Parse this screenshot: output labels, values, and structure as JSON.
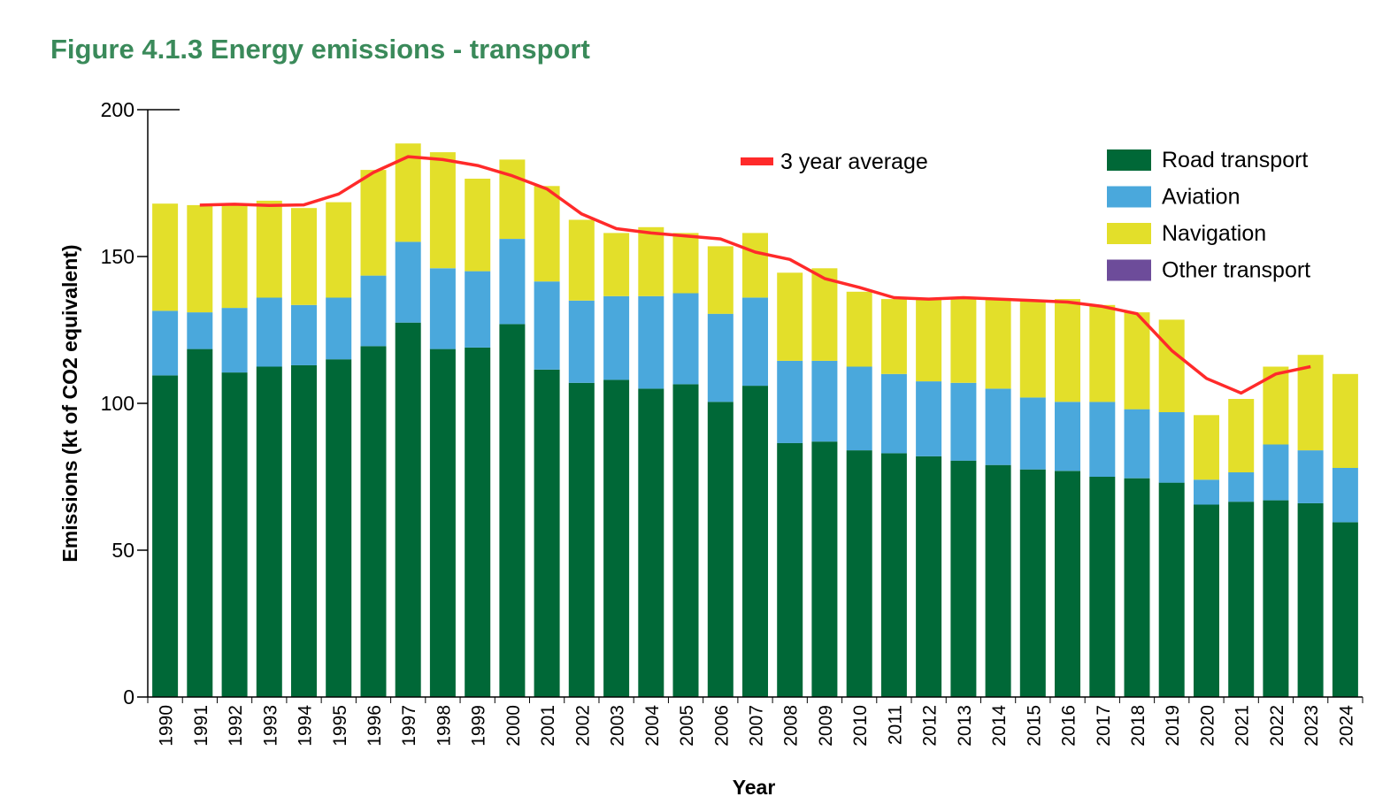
{
  "figure": {
    "title": "Figure 4.1.3 Energy emissions - transport"
  },
  "chart_data": {
    "type": "bar",
    "stacked": true,
    "title": "Figure 4.1.3 Energy emissions - transport",
    "xlabel": "Year",
    "ylabel": "Emissions (kt of CO2 equivalent)",
    "ylim": [
      0,
      200
    ],
    "yticks": [
      0,
      50,
      100,
      150,
      200
    ],
    "grid": false,
    "legend_position": "top-right",
    "categories": [
      "1990",
      "1991",
      "1992",
      "1993",
      "1994",
      "1995",
      "1996",
      "1997",
      "1998",
      "1999",
      "2000",
      "2001",
      "2002",
      "2003",
      "2004",
      "2005",
      "2006",
      "2007",
      "2008",
      "2009",
      "2010",
      "2011",
      "2012",
      "2013",
      "2014",
      "2015",
      "2016",
      "2017",
      "2018",
      "2019",
      "2020",
      "2021",
      "2022",
      "2023",
      "2024"
    ],
    "series": [
      {
        "name": "Road transport",
        "color": "#006837",
        "values": [
          109.5,
          118.5,
          110.5,
          112.5,
          113,
          115,
          119.5,
          127.5,
          118.5,
          119,
          127,
          111.5,
          107,
          108,
          105,
          106.5,
          100.5,
          106,
          86.5,
          87,
          84,
          83,
          82,
          80.5,
          79,
          77.5,
          77,
          75,
          74.5,
          73,
          65.5,
          66.5,
          67,
          66,
          59.5
        ]
      },
      {
        "name": "Aviation",
        "color": "#4aa8dc",
        "values": [
          22,
          12.5,
          22,
          23.5,
          20.5,
          21,
          24,
          27.5,
          27.5,
          26,
          29,
          30,
          28,
          28.5,
          31.5,
          31,
          30,
          30,
          28,
          27.5,
          28.5,
          27,
          25.5,
          26.5,
          26,
          24.5,
          23.5,
          25.5,
          23.5,
          24,
          8.5,
          10,
          19,
          18,
          18.5
        ]
      },
      {
        "name": "Navigation",
        "color": "#e3df2a",
        "values": [
          36.5,
          36.5,
          35.5,
          33,
          33,
          32.5,
          36,
          33.5,
          39.5,
          31.5,
          27,
          32.5,
          27.5,
          21.5,
          23.5,
          20.5,
          23,
          22,
          30,
          31.5,
          25.5,
          25.5,
          28.5,
          29,
          30.5,
          33,
          35,
          33,
          33,
          31.5,
          22,
          25,
          26.5,
          32.5,
          32
        ]
      },
      {
        "name": "Other transport",
        "color": "#6d4c9a",
        "values": [
          0,
          0,
          0,
          0,
          0,
          0,
          0,
          0,
          0,
          0,
          0,
          0,
          0,
          0,
          0,
          0,
          0,
          0,
          0,
          0,
          0,
          0,
          0,
          0,
          0,
          0,
          0,
          0,
          0,
          0,
          0,
          0,
          0,
          0,
          0
        ]
      },
      {
        "name": "3 year average",
        "type": "line",
        "color": "#ff2a2a",
        "values": [
          null,
          167.5,
          167.8,
          167.4,
          167.6,
          171.3,
          178.6,
          184,
          183,
          181,
          177.5,
          173,
          164.5,
          159.5,
          158,
          157,
          156,
          151.5,
          149,
          142.5,
          139.5,
          136,
          135.5,
          136,
          135.5,
          135,
          134.5,
          133,
          130.5,
          118,
          108.5,
          103.5,
          110,
          112.5,
          null
        ]
      }
    ]
  }
}
